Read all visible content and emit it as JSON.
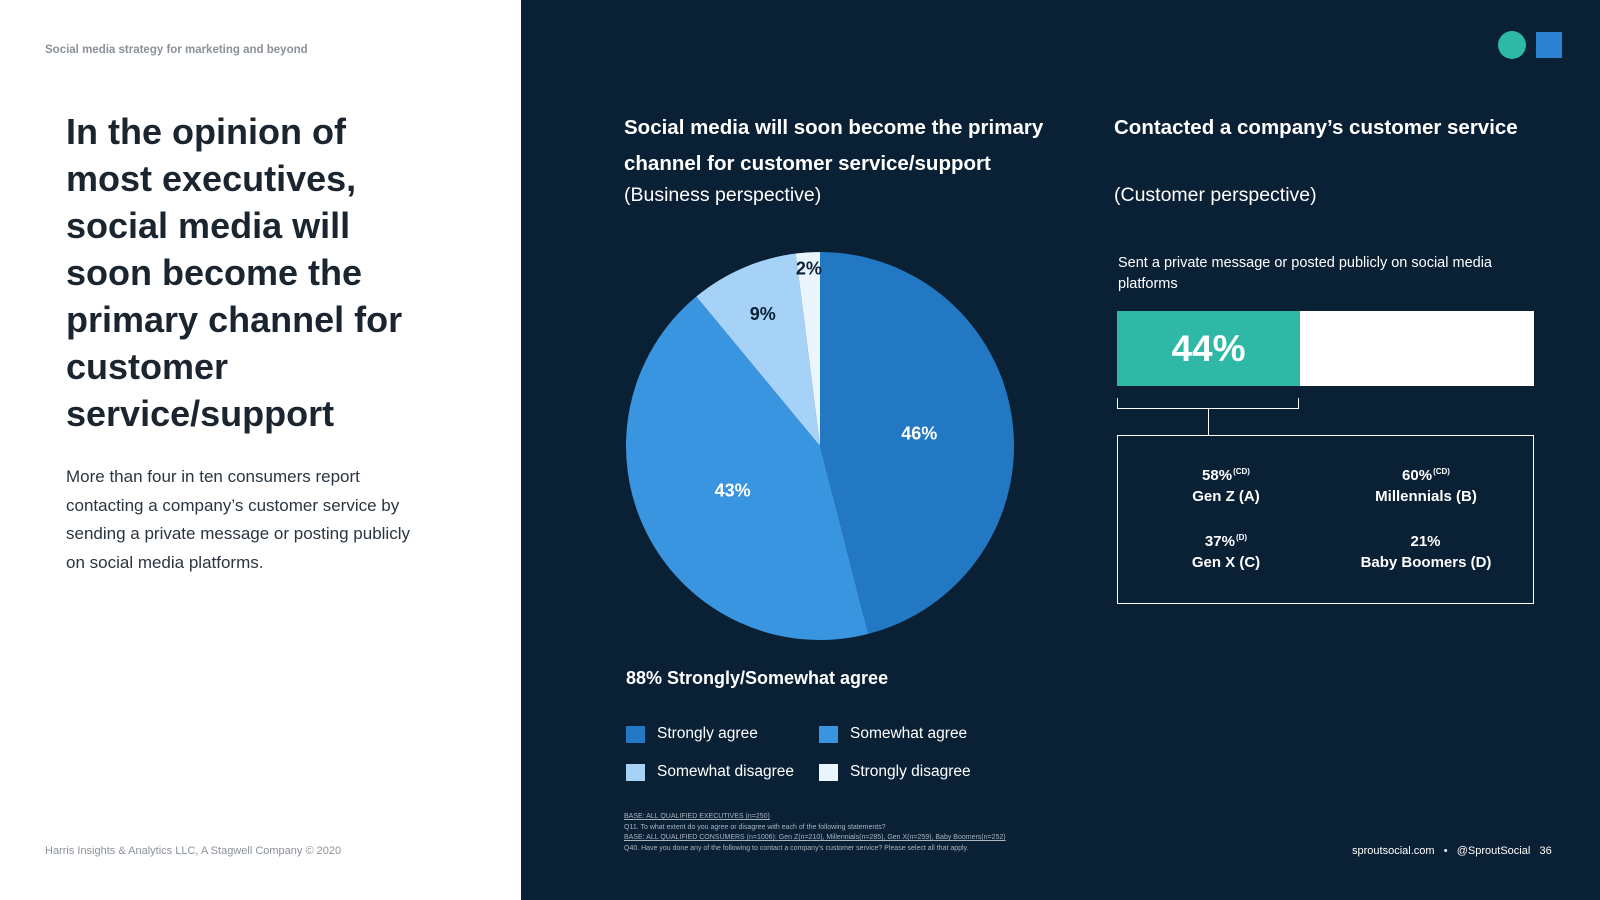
{
  "eyebrow": "Social media strategy for marketing and beyond",
  "headline": "In the opinion of most executives, social media will soon become the primary channel for customer service/support",
  "body": "More than four in ten consumers report contacting a company’s customer service by sending a private message or posting publicly on social media platforms.",
  "footer_left": "Harris Insights & Analytics LLC, A Stagwell Company © 2020",
  "footer_right": {
    "site": "sproutsocial.com",
    "separator": "•",
    "handle": "@SproutSocial",
    "page": "36"
  },
  "colors": {
    "dark_bg": "#0a2035",
    "teal": "#2fb8a6",
    "accent_blue": "#2a82d0"
  },
  "chart_data": [
    {
      "type": "pie",
      "title": "Social media will soon become the primary channel for customer service/support",
      "subtitle": "(Business perspective)",
      "series": [
        {
          "name": "Strongly agree",
          "value": 46,
          "label": "46%",
          "color": "#2378c4"
        },
        {
          "name": "Somewhat agree",
          "value": 43,
          "label": "43%",
          "color": "#3a95e0"
        },
        {
          "name": "Somewhat disagree",
          "value": 9,
          "label": "9%",
          "color": "#a6d2f7"
        },
        {
          "name": "Strongly disagree",
          "value": 2,
          "label": "2%",
          "color": "#eaf5fd"
        }
      ],
      "legend": "bottom",
      "summary": "88% Strongly/Somewhat agree"
    },
    {
      "type": "bar",
      "title": "Contacted a company’s customer service",
      "subtitle": "(Customer perspective)",
      "categories": [
        "Sent a private message or posted publicly on social media platforms"
      ],
      "values": [
        44
      ],
      "value_label": "44%",
      "breakdown": [
        {
          "pct": "58%",
          "sup": "(CD)",
          "label": "Gen Z (A)"
        },
        {
          "pct": "60%",
          "sup": "(CD)",
          "label": "Millennials (B)"
        },
        {
          "pct": "37%",
          "sup": "(D)",
          "label": "Gen X (C)"
        },
        {
          "pct": "21%",
          "sup": "",
          "label": "Baby Boomers (D)"
        }
      ]
    }
  ],
  "notes": {
    "base_exec": "BASE: ALL QUALIFIED EXECUTIVES (n=250)",
    "q11": "Q11. To what extent do you agree or disagree with each of the following statements?",
    "base_cons": "BASE: ALL QUALIFIED CONSUMERS (n=1006): Gen Z(n=210), Millennials(n=285), Gen X(n=259), Baby Boomers(n=252)",
    "q40": "Q40. Have you done any of the following to contact a company’s customer service? Please select all that apply."
  }
}
